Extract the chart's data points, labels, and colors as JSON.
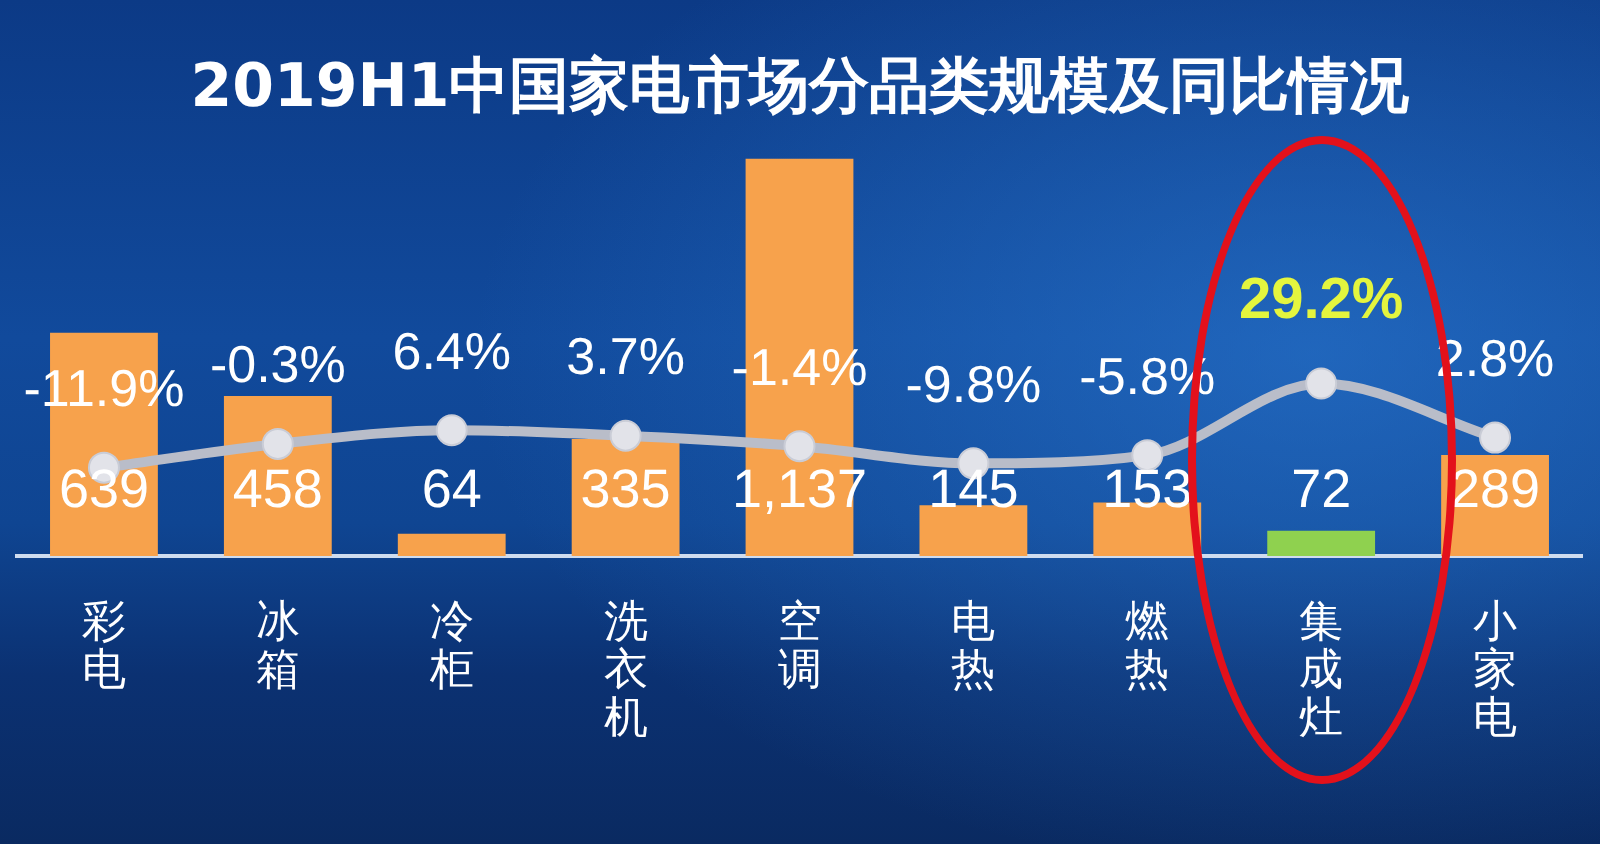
{
  "chart_data": {
    "type": "bar",
    "title": "2019H1中国家电市场分品类规模及同比情况",
    "categories": [
      "彩电",
      "冰箱",
      "冷柜",
      "洗衣机",
      "空调",
      "电热",
      "燃热",
      "集成灶",
      "小家电"
    ],
    "series": [
      {
        "colors": [
          "#f7a24c",
          "#f7a24c",
          "#f7a24c",
          "#f7a24c",
          "#f7a24c",
          "#f7a24c",
          "#f7a24c",
          "#8fd14f",
          "#f7a24c"
        ],
        "values": [
          639,
          458,
          64,
          335,
          1137,
          145,
          153,
          72,
          289
        ],
        "value_labels": [
          "639",
          "458",
          "64",
          "335",
          "1,137",
          "145",
          "153",
          "72",
          "289"
        ]
      },
      {
        "type": "line",
        "axis": "y2",
        "color": "#b9bdc9",
        "values": [
          -11.9,
          -0.3,
          6.4,
          3.7,
          -1.4,
          -9.8,
          -5.8,
          29.2,
          2.8
        ],
        "value_labels": [
          "-11.9%",
          "-0.3%",
          "6.4%",
          "3.7%",
          "-1.4%",
          "-9.8%",
          "-5.8%",
          "29.2%",
          "2.8%"
        ]
      }
    ],
    "tick_labels": "x",
    "marker": "circle",
    "grid": false,
    "legend": false
  }
}
